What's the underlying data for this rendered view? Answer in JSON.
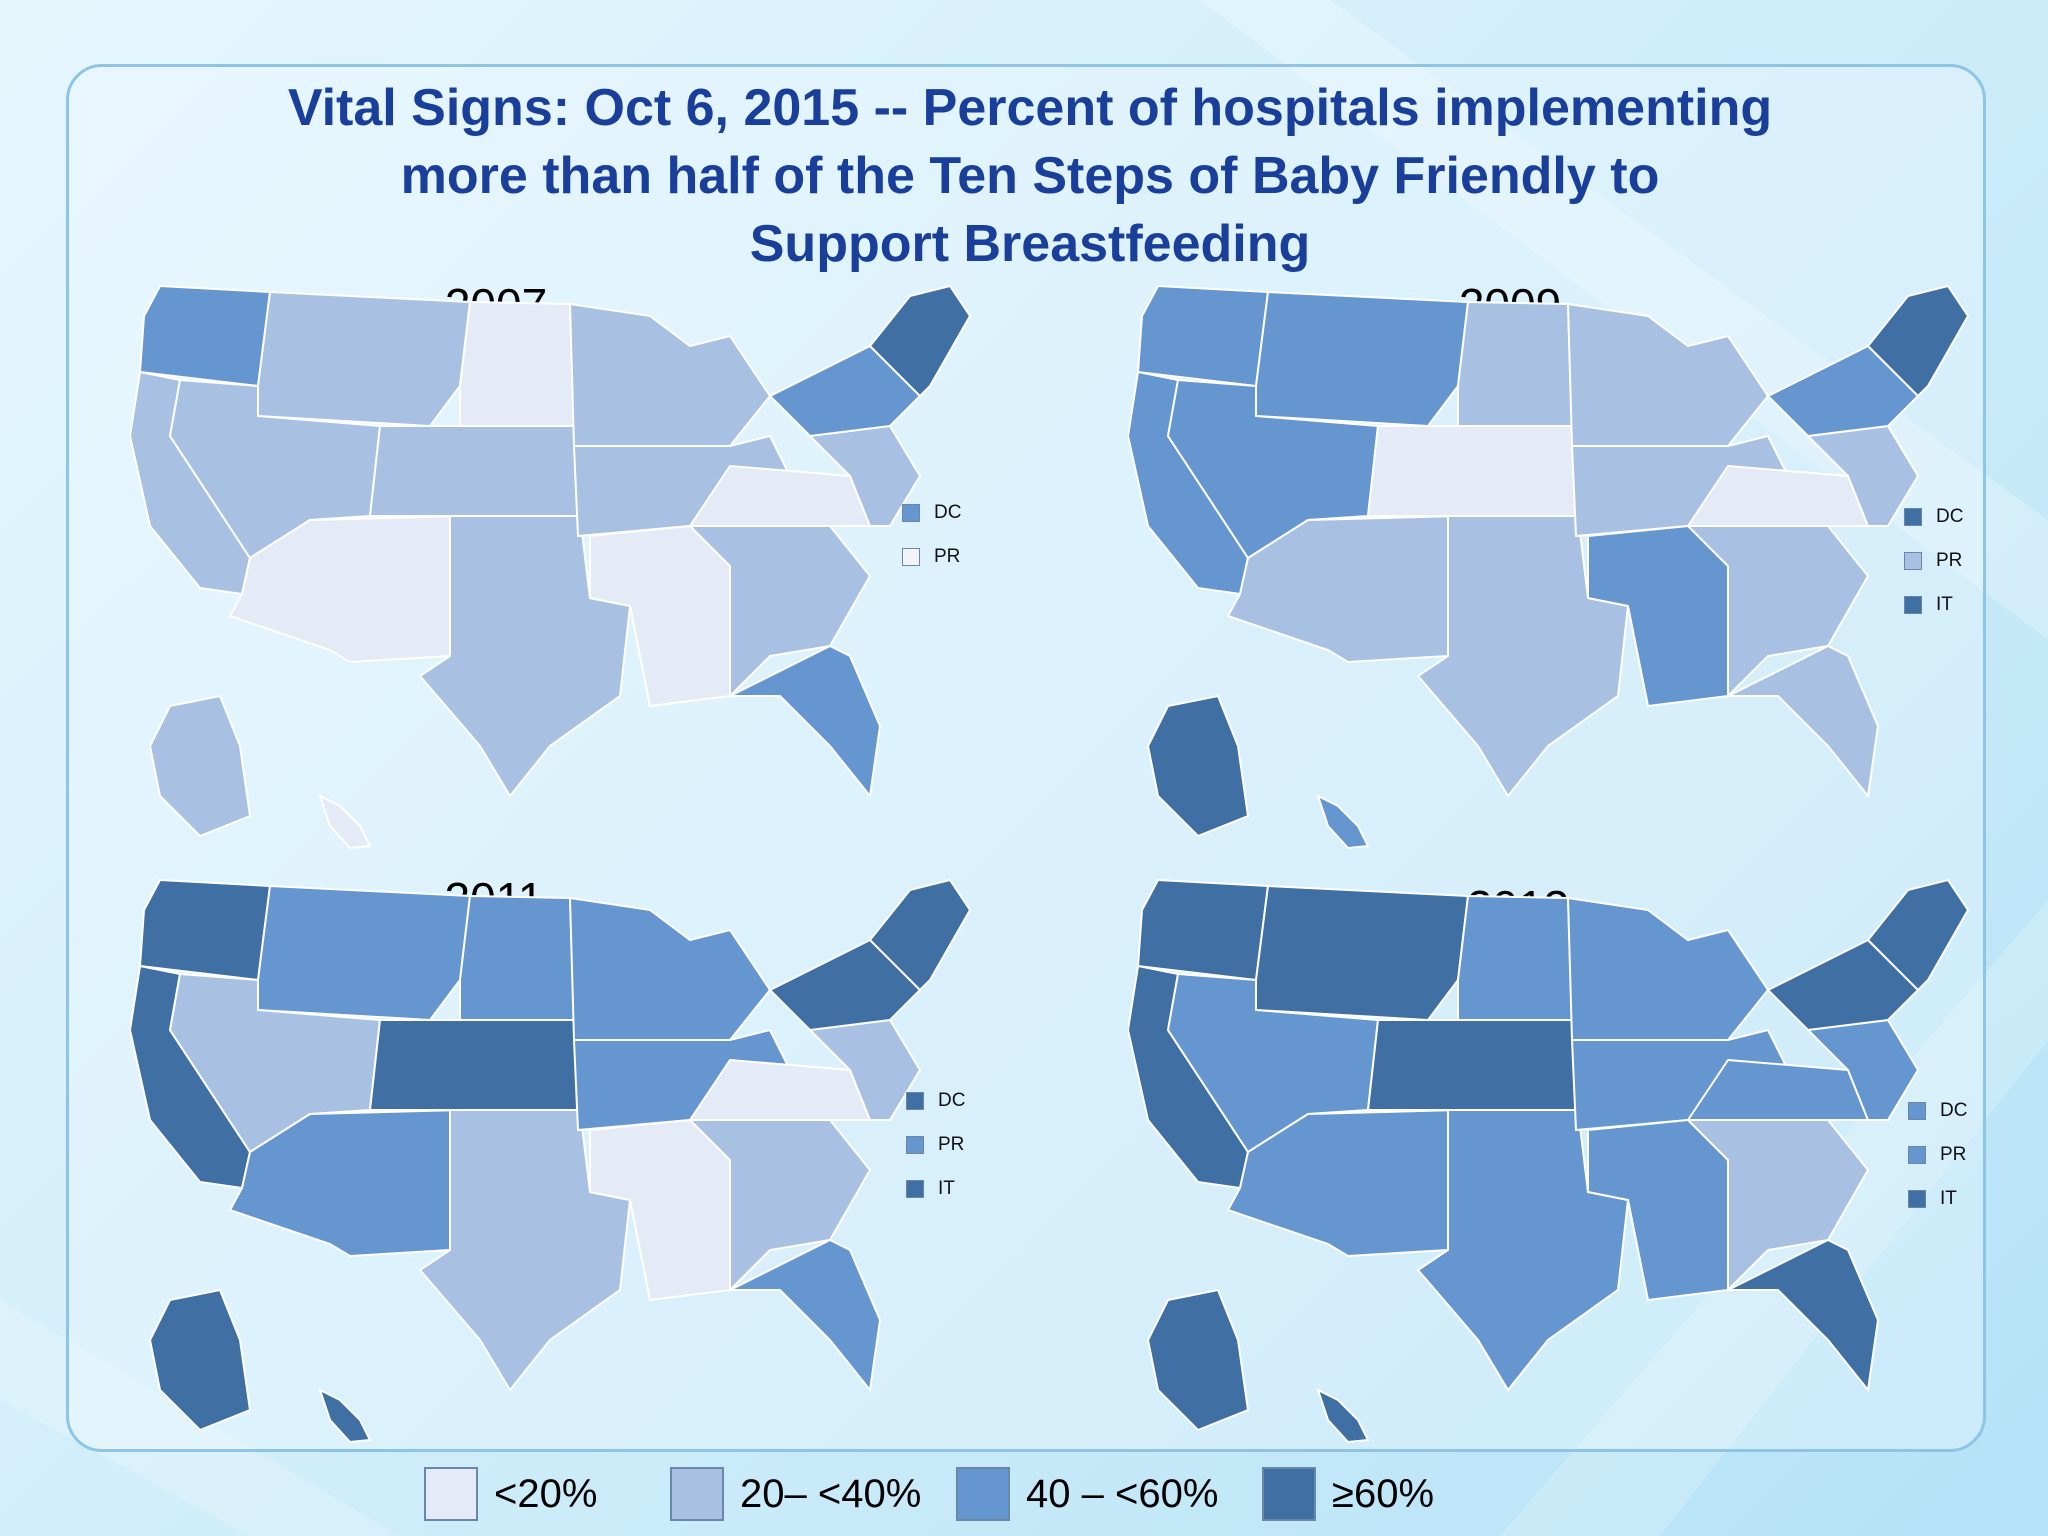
{
  "title_lines": [
    "Vital Signs: Oct 6, 2015 -- Percent of hospitals implementing",
    "more than half of the Ten Steps of Baby Friendly to",
    "Support Breastfeeding"
  ],
  "legend": [
    {
      "label": "<20%",
      "color": "#e4eaf6"
    },
    {
      "label": "20– <40%",
      "color": "#a8c1e2"
    },
    {
      "label": "40 – <60%",
      "color": "#6596cf"
    },
    {
      "label": "≥60%",
      "color": "#3f6fa3"
    }
  ],
  "maps": [
    {
      "year": "2007",
      "territories": [
        {
          "code": "DC",
          "color": "#6596cf"
        },
        {
          "code": "PR",
          "color": "#f2f4f8"
        }
      ],
      "regions": {
        "northwest": "#6596cf",
        "mountain_north": "#a8c1e2",
        "nevada_utah": "#a8c1e2",
        "california": "#a8c1e2",
        "southwest": "#e4eaf6",
        "plains_north": "#e4eaf6",
        "plains_mid": "#a8c1e2",
        "texas_okla": "#a8c1e2",
        "midwest_upper": "#a8c1e2",
        "midwest_lower": "#a8c1e2",
        "south_central": "#e4eaf6",
        "southeast": "#a8c1e2",
        "florida": "#6596cf",
        "ohio_valley": "#e4eaf6",
        "mid_atlantic": "#a8c1e2",
        "new_york": "#6596cf",
        "new_england": "#3f6fa3",
        "alaska": "#a8c1e2",
        "hawaii": "#e4eaf6"
      }
    },
    {
      "year": "2009",
      "territories": [
        {
          "code": "DC",
          "color": "#3f6fa3"
        },
        {
          "code": "PR",
          "color": "#a8c1e2"
        },
        {
          "code": "IT",
          "color": "#3f6fa3"
        }
      ],
      "regions": {
        "northwest": "#6596cf",
        "mountain_north": "#6596cf",
        "nevada_utah": "#6596cf",
        "california": "#6596cf",
        "southwest": "#a8c1e2",
        "plains_north": "#a8c1e2",
        "plains_mid": "#e4eaf6",
        "texas_okla": "#a8c1e2",
        "midwest_upper": "#a8c1e2",
        "midwest_lower": "#a8c1e2",
        "south_central": "#6596cf",
        "southeast": "#a8c1e2",
        "florida": "#a8c1e2",
        "ohio_valley": "#e4eaf6",
        "mid_atlantic": "#a8c1e2",
        "new_york": "#6596cf",
        "new_england": "#3f6fa3",
        "alaska": "#3f6fa3",
        "hawaii": "#6596cf"
      }
    },
    {
      "year": "2011",
      "territories": [
        {
          "code": "DC",
          "color": "#3f6fa3"
        },
        {
          "code": "PR",
          "color": "#6596cf"
        },
        {
          "code": "IT",
          "color": "#3f6fa3"
        }
      ],
      "regions": {
        "northwest": "#3f6fa3",
        "mountain_north": "#6596cf",
        "nevada_utah": "#a8c1e2",
        "california": "#3f6fa3",
        "southwest": "#6596cf",
        "plains_north": "#6596cf",
        "plains_mid": "#3f6fa3",
        "texas_okla": "#a8c1e2",
        "midwest_upper": "#6596cf",
        "midwest_lower": "#6596cf",
        "south_central": "#e4eaf6",
        "southeast": "#a8c1e2",
        "florida": "#6596cf",
        "ohio_valley": "#e4eaf6",
        "mid_atlantic": "#a8c1e2",
        "new_york": "#3f6fa3",
        "new_england": "#3f6fa3",
        "alaska": "#3f6fa3",
        "hawaii": "#3f6fa3"
      }
    },
    {
      "year": "2013",
      "territories": [
        {
          "code": "DC",
          "color": "#6596cf"
        },
        {
          "code": "PR",
          "color": "#6596cf"
        },
        {
          "code": "IT",
          "color": "#3f6fa3"
        }
      ],
      "regions": {
        "northwest": "#3f6fa3",
        "mountain_north": "#3f6fa3",
        "nevada_utah": "#6596cf",
        "california": "#3f6fa3",
        "southwest": "#6596cf",
        "plains_north": "#6596cf",
        "plains_mid": "#3f6fa3",
        "texas_okla": "#6596cf",
        "midwest_upper": "#6596cf",
        "midwest_lower": "#6596cf",
        "south_central": "#6596cf",
        "southeast": "#a8c1e2",
        "florida": "#3f6fa3",
        "ohio_valley": "#6596cf",
        "mid_atlantic": "#6596cf",
        "new_york": "#3f6fa3",
        "new_england": "#3f6fa3",
        "alaska": "#3f6fa3",
        "hawaii": "#3f6fa3"
      }
    }
  ]
}
